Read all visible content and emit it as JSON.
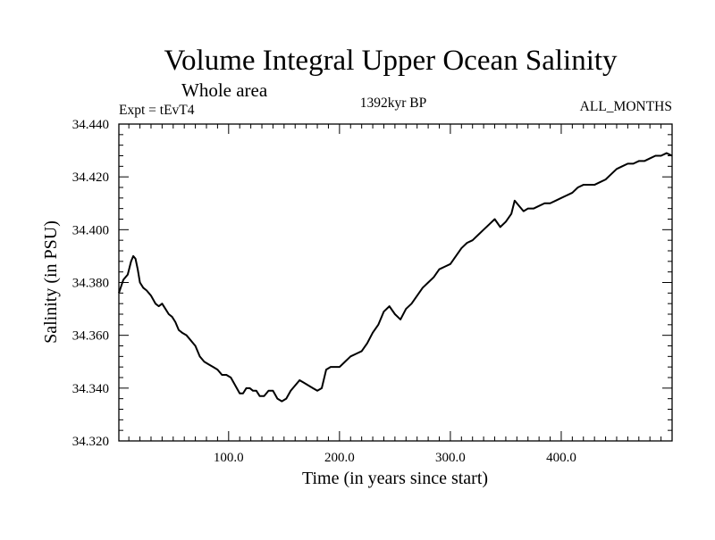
{
  "chart_data": {
    "type": "line",
    "title": "Volume Integral Upper Ocean Salinity",
    "subtitle": "Whole area",
    "experiment_label": "Expt = tEvT4",
    "period_label": "1392kyr BP",
    "months_label": "ALL_MONTHS",
    "xlabel": "Time (in years since start)",
    "ylabel": "Salinity (in PSU)",
    "xlim": [
      1,
      500
    ],
    "ylim": [
      34.32,
      34.44
    ],
    "x_ticks": [
      100,
      200,
      300,
      400
    ],
    "x_tick_labels": [
      "100.0",
      "200.0",
      "300.0",
      "400.0"
    ],
    "y_ticks": [
      34.32,
      34.34,
      34.36,
      34.38,
      34.4,
      34.42,
      34.44
    ],
    "y_tick_labels": [
      "34.320",
      "34.340",
      "34.360",
      "34.380",
      "34.400",
      "34.420",
      "34.440"
    ],
    "series": [
      {
        "name": "Salinity",
        "color": "#000000",
        "x": [
          1,
          5,
          9,
          12,
          14,
          16,
          18,
          20,
          23,
          26,
          30,
          34,
          37,
          40,
          43,
          46,
          49,
          52,
          55,
          58,
          62,
          66,
          70,
          74,
          78,
          82,
          86,
          90,
          94,
          98,
          102,
          106,
          110,
          113,
          116,
          119,
          122,
          125,
          128,
          132,
          136,
          140,
          144,
          148,
          152,
          156,
          160,
          164,
          168,
          172,
          176,
          180,
          184,
          188,
          192,
          196,
          200,
          205,
          210,
          215,
          220,
          225,
          230,
          235,
          240,
          245,
          250,
          255,
          260,
          265,
          270,
          275,
          280,
          285,
          290,
          295,
          300,
          305,
          310,
          315,
          320,
          325,
          330,
          335,
          340,
          345,
          350,
          355,
          358,
          362,
          366,
          370,
          375,
          380,
          385,
          390,
          395,
          400,
          405,
          410,
          415,
          420,
          425,
          430,
          435,
          440,
          445,
          450,
          455,
          460,
          465,
          470,
          475,
          480,
          485,
          490,
          495,
          500
        ],
        "values": [
          34.376,
          34.381,
          34.383,
          34.388,
          34.39,
          34.389,
          34.385,
          34.38,
          34.378,
          34.377,
          34.375,
          34.372,
          34.371,
          34.372,
          34.37,
          34.368,
          34.367,
          34.365,
          34.362,
          34.361,
          34.36,
          34.358,
          34.356,
          34.352,
          34.35,
          34.349,
          34.348,
          34.347,
          34.345,
          34.345,
          34.344,
          34.341,
          34.338,
          34.338,
          34.34,
          34.34,
          34.339,
          34.339,
          34.337,
          34.337,
          34.339,
          34.339,
          34.336,
          34.335,
          34.336,
          34.339,
          34.341,
          34.343,
          34.342,
          34.341,
          34.34,
          34.339,
          34.34,
          34.347,
          34.348,
          34.348,
          34.348,
          34.35,
          34.352,
          34.353,
          34.354,
          34.357,
          34.361,
          34.364,
          34.369,
          34.371,
          34.368,
          34.366,
          34.37,
          34.372,
          34.375,
          34.378,
          34.38,
          34.382,
          34.385,
          34.386,
          34.387,
          34.39,
          34.393,
          34.395,
          34.396,
          34.398,
          34.4,
          34.402,
          34.404,
          34.401,
          34.403,
          34.406,
          34.411,
          34.409,
          34.407,
          34.408,
          34.408,
          34.409,
          34.41,
          34.41,
          34.411,
          34.412,
          34.413,
          34.414,
          34.416,
          34.417,
          34.417,
          34.417,
          34.418,
          34.419,
          34.421,
          34.423,
          34.424,
          34.425,
          34.425,
          34.426,
          34.426,
          34.427,
          34.428,
          34.428,
          34.429,
          34.428
        ]
      }
    ]
  }
}
